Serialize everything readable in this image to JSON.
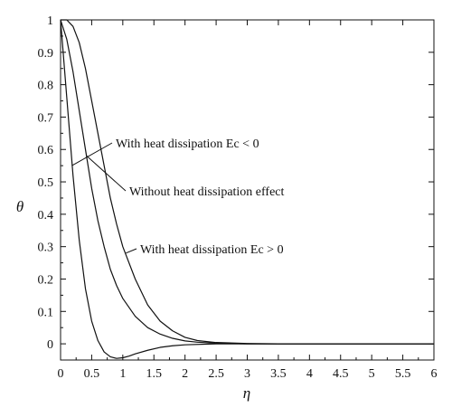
{
  "chart_data": {
    "type": "line",
    "title": "",
    "xlabel": "η",
    "ylabel": "θ",
    "xlim": [
      0,
      6
    ],
    "ylim": [
      -0.05,
      1
    ],
    "grid": false,
    "x_ticks": [
      "0",
      "0.5",
      "1",
      "1.5",
      "2",
      "2.5",
      "3",
      "3.5",
      "4",
      "4.5",
      "5",
      "5.5",
      "6"
    ],
    "y_ticks": [
      "0",
      "0.1",
      "0.2",
      "0.3",
      "0.4",
      "0.5",
      "0.6",
      "0.7",
      "0.8",
      "0.9",
      "1"
    ],
    "series": [
      {
        "name": "With heat dissipation Ec < 0",
        "x": [
          0,
          0.1,
          0.2,
          0.3,
          0.4,
          0.5,
          0.6,
          0.7,
          0.8,
          0.9,
          1.0,
          1.1,
          1.2,
          1.4,
          1.6,
          1.8,
          2.0,
          2.5,
          3.0,
          3.5,
          4.0,
          5.0,
          6.0
        ],
        "values": [
          1.0,
          0.76,
          0.52,
          0.32,
          0.17,
          0.07,
          0.01,
          -0.025,
          -0.04,
          -0.045,
          -0.043,
          -0.038,
          -0.031,
          -0.02,
          -0.011,
          -0.006,
          -0.003,
          0,
          0,
          0,
          0,
          0,
          0
        ]
      },
      {
        "name": "Without heat dissipation effect",
        "x": [
          0,
          0.1,
          0.2,
          0.3,
          0.4,
          0.5,
          0.6,
          0.7,
          0.8,
          0.9,
          1.0,
          1.2,
          1.4,
          1.6,
          1.8,
          2.0,
          2.2,
          2.5,
          3.0,
          3.5,
          4.0,
          5.0,
          6.0
        ],
        "values": [
          1.0,
          0.94,
          0.84,
          0.72,
          0.6,
          0.48,
          0.38,
          0.3,
          0.23,
          0.18,
          0.14,
          0.085,
          0.05,
          0.03,
          0.017,
          0.009,
          0.005,
          0.002,
          0,
          0,
          0,
          0,
          0
        ]
      },
      {
        "name": "With heat dissipation Ec > 0",
        "x": [
          0,
          0.1,
          0.2,
          0.3,
          0.4,
          0.5,
          0.6,
          0.7,
          0.8,
          0.9,
          1.0,
          1.2,
          1.4,
          1.6,
          1.8,
          2.0,
          2.2,
          2.5,
          3.0,
          3.5,
          4.0,
          5.0,
          6.0
        ],
        "values": [
          1.0,
          1.0,
          0.98,
          0.93,
          0.85,
          0.75,
          0.65,
          0.55,
          0.45,
          0.37,
          0.3,
          0.2,
          0.12,
          0.07,
          0.04,
          0.02,
          0.01,
          0.004,
          0.001,
          0,
          0,
          0,
          0
        ]
      }
    ],
    "annotations": [
      {
        "text": "With heat dissipation Ec < 0",
        "target_series": 0,
        "arrow_to": [
          0.18,
          0.55
        ]
      },
      {
        "text": "Without heat dissipation effect",
        "target_series": 1,
        "arrow_to": [
          0.42,
          0.58
        ]
      },
      {
        "text": "With heat dissipation Ec > 0",
        "target_series": 2,
        "arrow_to": [
          1.05,
          0.28
        ]
      }
    ]
  }
}
